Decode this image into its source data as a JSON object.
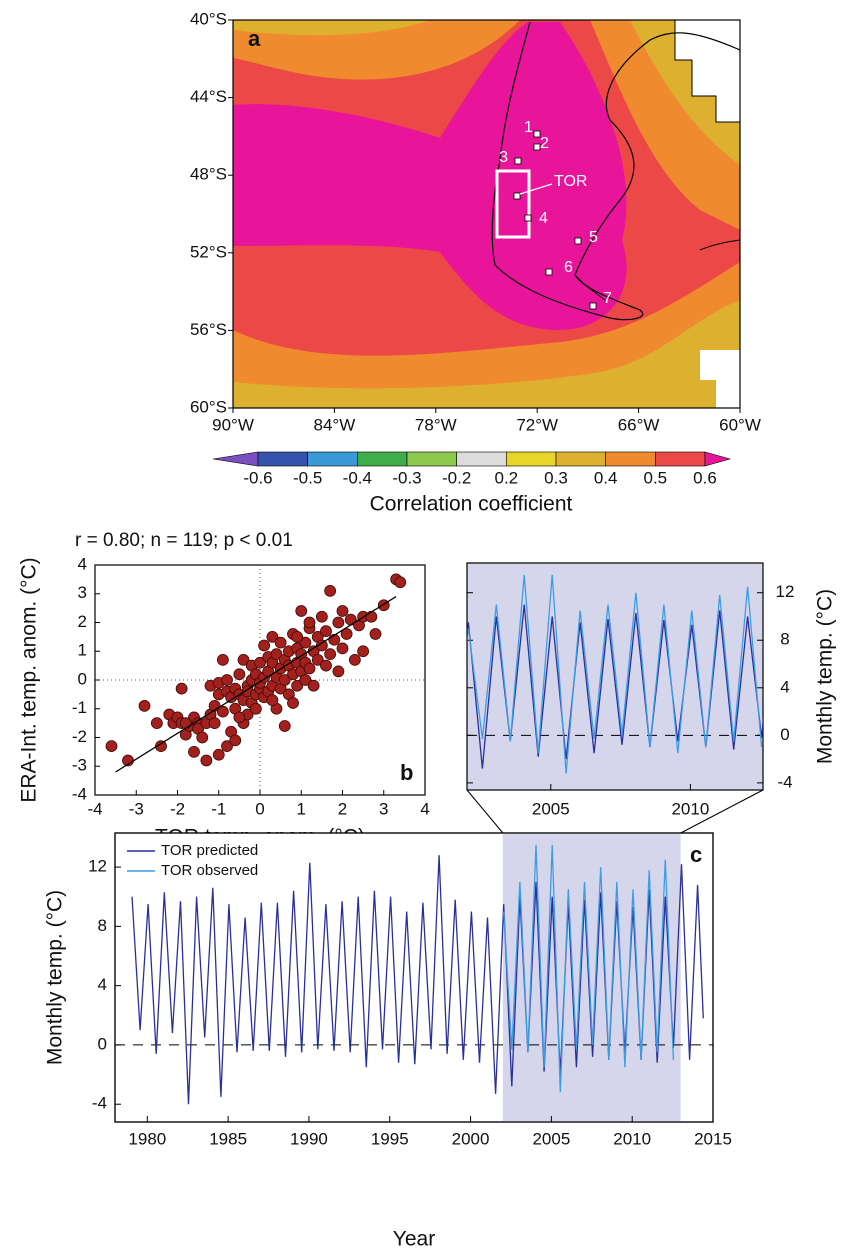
{
  "chart_data": [
    {
      "type": "map",
      "panel_label": "a",
      "xlim": [
        -90,
        -60
      ],
      "ylim": [
        -60,
        -40
      ],
      "xticks": [
        {
          "value": -90,
          "label": "90°W"
        },
        {
          "value": -84,
          "label": "84°W"
        },
        {
          "value": -78,
          "label": "78°W"
        },
        {
          "value": -72,
          "label": "72°W"
        },
        {
          "value": -66,
          "label": "66°W"
        },
        {
          "value": -60,
          "label": "60°W"
        }
      ],
      "yticks": [
        {
          "value": -40,
          "label": "40°S"
        },
        {
          "value": -44,
          "label": "44°S"
        },
        {
          "value": -48,
          "label": "48°S"
        },
        {
          "value": -52,
          "label": "52°S"
        },
        {
          "value": -56,
          "label": "56°S"
        },
        {
          "value": -60,
          "label": "60°S"
        }
      ],
      "stations": [
        "1",
        "2",
        "3",
        "4",
        "5",
        "6",
        "7"
      ],
      "site_label": "TOR",
      "colorbar": {
        "ticks": [
          -0.6,
          -0.5,
          -0.4,
          -0.3,
          -0.2,
          0.2,
          0.3,
          0.4,
          0.5,
          0.6
        ],
        "colors": [
          "#7b4fbf",
          "#3553ad",
          "#3a9ad8",
          "#3fae4a",
          "#8cc84b",
          "#dcdcdc",
          "#e8d52a",
          "#deb02f",
          "#f08a2e",
          "#ec4848",
          "#e8149a"
        ],
        "label": "Correlation coefficient"
      }
    },
    {
      "type": "scatter",
      "panel_label": "b",
      "annotation": "r = 0.80; n = 119; p < 0.01",
      "xlabel": "TOR temp. anom. (°C)",
      "ylabel": "ERA-Int. temp. anom. (°C)",
      "xlim": [
        -4,
        4
      ],
      "ylim": [
        -4,
        4
      ],
      "xticks": [
        -4,
        -3,
        -2,
        -1,
        0,
        1,
        2,
        3,
        4
      ],
      "yticks": [
        -4,
        -3,
        -2,
        -1,
        0,
        1,
        2,
        3,
        4
      ],
      "hline": 0,
      "vline": 0,
      "color": "#a3201c",
      "x": [
        -3.6,
        -3.2,
        -2.8,
        -2.4,
        -2.2,
        -2.1,
        -2.0,
        -1.9,
        -1.9,
        -1.8,
        -1.7,
        -1.6,
        -1.6,
        -1.5,
        -1.5,
        -1.4,
        -1.3,
        -1.3,
        -1.2,
        -1.2,
        -1.1,
        -1.1,
        -1.0,
        -1.0,
        -1.0,
        -0.9,
        -0.9,
        -0.8,
        -0.8,
        -0.7,
        -0.7,
        -0.6,
        -0.6,
        -0.6,
        -0.5,
        -0.5,
        -0.4,
        -0.4,
        -0.4,
        -0.3,
        -0.3,
        -0.3,
        -0.2,
        -0.2,
        -0.2,
        -0.1,
        -0.1,
        -0.1,
        0.0,
        0.0,
        0.0,
        0.1,
        0.1,
        0.1,
        0.2,
        0.2,
        0.2,
        0.3,
        0.3,
        0.3,
        0.4,
        0.4,
        0.4,
        0.5,
        0.5,
        0.5,
        0.6,
        0.6,
        0.6,
        0.7,
        0.7,
        0.7,
        0.8,
        0.8,
        0.8,
        0.9,
        0.9,
        0.9,
        1.0,
        1.0,
        1.0,
        1.1,
        1.1,
        1.1,
        1.2,
        1.2,
        1.3,
        1.3,
        1.4,
        1.4,
        1.5,
        1.5,
        1.6,
        1.6,
        1.7,
        1.7,
        1.8,
        1.9,
        1.9,
        2.0,
        2.0,
        2.1,
        2.2,
        2.3,
        2.4,
        2.5,
        2.5,
        2.7,
        2.8,
        3.0,
        3.3,
        3.4,
        -2.5,
        -1.8,
        -0.8,
        0.3,
        1.2,
        0.9,
        -0.5
      ],
      "values": [
        -2.3,
        -2.8,
        -0.9,
        -2.3,
        -1.2,
        -1.5,
        -1.3,
        -0.3,
        -1.5,
        -1.9,
        -1.6,
        -2.5,
        -1.3,
        -1.5,
        -1.7,
        -2.0,
        -1.5,
        -2.8,
        -0.2,
        -1.2,
        -0.9,
        -1.5,
        -2.6,
        -0.5,
        -0.1,
        0.7,
        -1.1,
        -0.4,
        -2.3,
        -1.8,
        -0.6,
        -2.1,
        -0.3,
        -1.0,
        0.2,
        -0.5,
        -1.5,
        -0.7,
        0.7,
        -0.2,
        -1.2,
        -0.4,
        0.0,
        -0.8,
        0.5,
        -0.5,
        -1.0,
        0.2,
        -0.3,
        0.6,
        -0.1,
        0.1,
        -0.6,
        1.2,
        0.3,
        -0.4,
        0.8,
        -0.2,
        0.6,
        1.5,
        0.1,
        -1.0,
        0.9,
        0.4,
        -0.3,
        1.3,
        0.0,
        0.7,
        -1.6,
        0.5,
        1.0,
        -0.5,
        0.2,
        1.6,
        -0.8,
        0.6,
        1.1,
        -0.2,
        0.9,
        0.3,
        2.4,
        1.3,
        0.0,
        0.6,
        1.8,
        0.4,
        1.0,
        -0.2,
        1.5,
        0.7,
        1.2,
        2.2,
        0.5,
        1.7,
        3.1,
        0.9,
        1.4,
        2.0,
        0.3,
        1.1,
        2.4,
        1.6,
        2.1,
        0.7,
        1.9,
        2.2,
        1.0,
        2.2,
        1.6,
        2.6,
        3.5,
        3.4,
        -1.5,
        -1.5,
        0.0,
        -0.7,
        2.0,
        1.5,
        -1.3
      ],
      "fit": {
        "x": [
          -3.5,
          3.3
        ],
        "values": [
          -3.2,
          2.9
        ],
        "color": "#000000"
      }
    },
    {
      "type": "line",
      "panel_label": "c",
      "xlabel": "Year",
      "ylabel": "Monthly temp. (°C)",
      "xlim": [
        1978,
        2015
      ],
      "ylim": [
        -5.2,
        14.3
      ],
      "xticks": [
        1980,
        1985,
        1990,
        1995,
        2000,
        2005,
        2010,
        2015
      ],
      "yticks": [
        -4,
        0,
        4,
        8,
        12
      ],
      "hline": 0,
      "highlight": [
        2002,
        2013
      ],
      "highlight_color": "#d5d5ec",
      "legend": "upper left",
      "series": [
        {
          "name": "TOR predicted",
          "color": "#2a2f9c",
          "x": [
            1979.05,
            1979.55,
            1980.05,
            1980.55,
            1981.05,
            1981.55,
            1982.05,
            1982.55,
            1983.05,
            1983.55,
            1984.05,
            1984.55,
            1985.05,
            1985.55,
            1986.05,
            1986.55,
            1987.05,
            1987.55,
            1988.05,
            1988.55,
            1989.05,
            1989.55,
            1990.05,
            1990.55,
            1991.05,
            1991.55,
            1992.05,
            1992.55,
            1993.05,
            1993.55,
            1994.05,
            1994.55,
            1995.05,
            1995.55,
            1996.05,
            1996.55,
            1997.05,
            1997.55,
            1998.05,
            1998.55,
            1999.05,
            1999.55,
            2000.05,
            2000.55,
            2001.05,
            2001.55,
            2002.05,
            2002.55,
            2003.05,
            2003.55,
            2004.05,
            2004.55,
            2005.05,
            2005.55,
            2006.05,
            2006.55,
            2007.05,
            2007.55,
            2008.05,
            2008.55,
            2009.05,
            2009.55,
            2010.05,
            2010.55,
            2011.05,
            2011.55,
            2012.05,
            2012.55,
            2013.05,
            2013.55,
            2014.05,
            2014.4
          ],
          "values": [
            10,
            1.0,
            9.5,
            -0.6,
            10.3,
            0.8,
            9.7,
            -4,
            10,
            0.5,
            10.6,
            -3.5,
            9.5,
            -0.5,
            8.6,
            -0.4,
            9.6,
            -0.4,
            9.6,
            -0.8,
            10.4,
            -0.5,
            12.3,
            -0.3,
            9.5,
            -0.4,
            9.7,
            -0.5,
            10,
            -1.5,
            10.4,
            -0.3,
            10,
            -1.2,
            9,
            -1.3,
            9.6,
            -0.3,
            12.8,
            -0.6,
            9.8,
            -1,
            9,
            -1.2,
            8.6,
            -3.3,
            9.5,
            -2.8,
            10,
            -0.5,
            11,
            -1.8,
            10,
            -2,
            9.5,
            -1.5,
            9.8,
            -0.8,
            10.3,
            -1,
            9.7,
            -0.5,
            9.3,
            -1,
            10.5,
            -1.2,
            10,
            -0.2,
            12.2,
            -1,
            10.8,
            1.8
          ]
        },
        {
          "name": "TOR observed",
          "color": "#3d9de2",
          "x": [
            2002.05,
            2002.55,
            2003.05,
            2003.55,
            2004.05,
            2004.55,
            2005.05,
            2005.55,
            2006.05,
            2006.55,
            2007.05,
            2007.55,
            2008.05,
            2008.55,
            2009.05,
            2009.55,
            2010.05,
            2010.55,
            2011.05,
            2011.55,
            2012.05,
            2012.55
          ],
          "values": [
            9,
            -0.3,
            11,
            -0.5,
            13.5,
            -1.5,
            13.5,
            -3.2,
            10.5,
            -0.3,
            11,
            0,
            12,
            -1,
            11,
            -1.5,
            10.5,
            -1,
            11.8,
            -0.5,
            12.5,
            -1
          ]
        }
      ],
      "inset": {
        "xlim": [
          2002,
          2012.6
        ],
        "ylim": [
          -4.6,
          14.5
        ],
        "xticks": [
          2005,
          2010
        ],
        "yticks": [
          -4,
          0,
          4,
          8,
          12
        ],
        "ylabel": "Monthly temp. (°C)"
      }
    }
  ]
}
